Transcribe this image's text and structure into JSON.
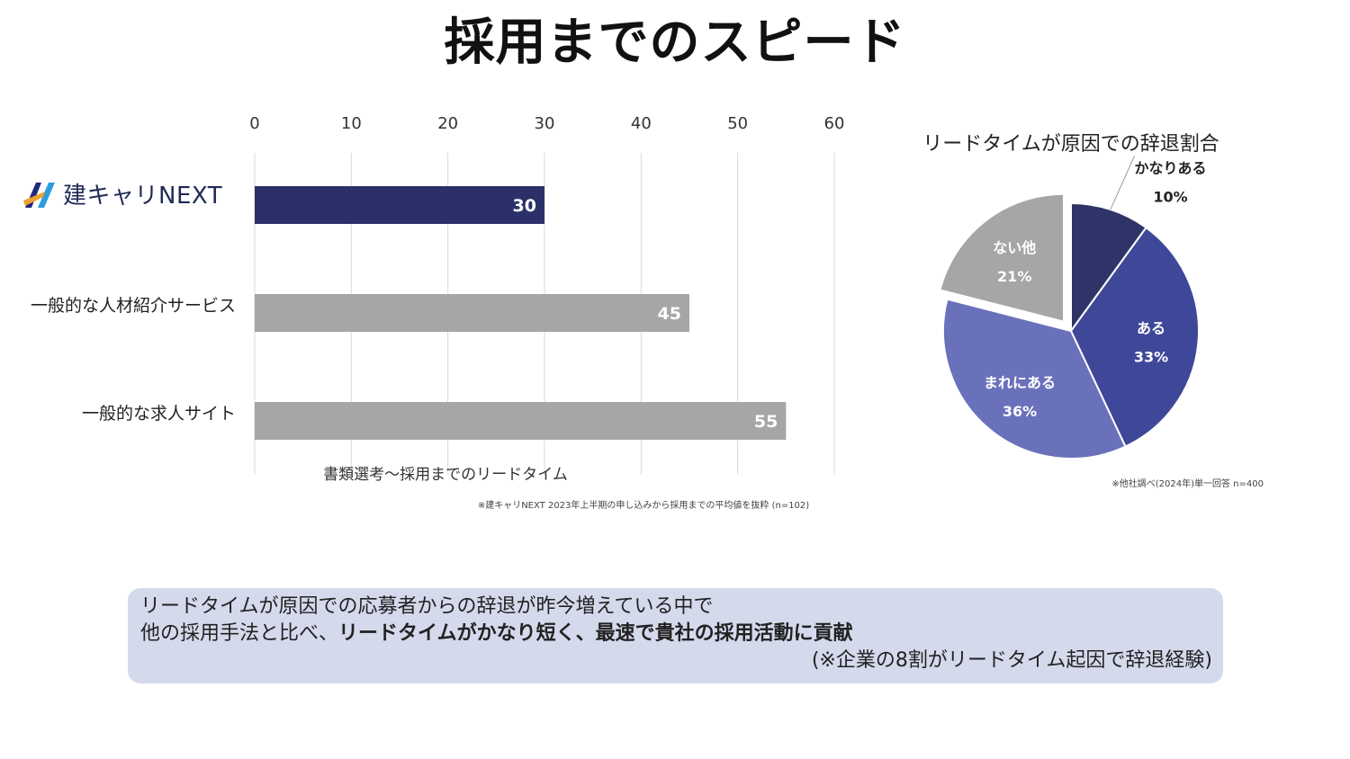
{
  "page": {
    "title": "採用までのスピード"
  },
  "logo": {
    "text": "建キャリNEXT",
    "colors": {
      "navy": "#1f2a7a",
      "orange": "#f0a030",
      "blue": "#2b9de0"
    }
  },
  "chart_data": [
    {
      "type": "bar",
      "orientation": "horizontal",
      "title": "",
      "categories": [
        "建キャリNEXT",
        "一般的な人材紹介サービス",
        "一般的な求人サイト"
      ],
      "values": [
        30,
        45,
        55
      ],
      "value_labels": [
        "30",
        "45",
        "55"
      ],
      "bar_colors": [
        "#2b3168",
        "#a6a6a6",
        "#a6a6a6"
      ],
      "xlabel": "書類選考～採用までのリードタイム",
      "xlim": [
        0,
        60
      ],
      "ticks": [
        "0",
        "10",
        "20",
        "30",
        "40",
        "50",
        "60"
      ],
      "tick_values": [
        0,
        10,
        20,
        30,
        40,
        50,
        60
      ],
      "axis_position": "top",
      "grid": true,
      "footnote": "※建キャリNEXT 2023年上半期の申し込みから採用までの平均値を抜粋 (n=102)"
    },
    {
      "type": "pie",
      "title": "リードタイムが原因での辞退割合",
      "slices": [
        {
          "label": "かなりある",
          "pct_label": "10%",
          "value": 10,
          "color": "#2e3468",
          "label_color": "#222222",
          "exploded": false
        },
        {
          "label": "ある",
          "pct_label": "33%",
          "value": 33,
          "color": "#3f4799",
          "label_color": "#ffffff",
          "exploded": false
        },
        {
          "label": "まれにある",
          "pct_label": "36%",
          "value": 36,
          "color": "#6a71bb",
          "label_color": "#ffffff",
          "exploded": false
        },
        {
          "label": "ない他",
          "pct_label": "21%",
          "value": 21,
          "color": "#a6a6a6",
          "label_color": "#ffffff",
          "exploded": true
        }
      ],
      "footnote": "※他社調べ(2024年)単一回答 n=400"
    }
  ],
  "callout": {
    "line1": "リードタイムが原因での応募者からの辞退が昨今増えている中で",
    "line2_normal": "他の採用手法と比べ、",
    "line2_bold": "リードタイムがかなり短く、最速で貴社の採用活動に貢献",
    "note": "(※企業の8割がリードタイム起因で辞退経験)"
  }
}
